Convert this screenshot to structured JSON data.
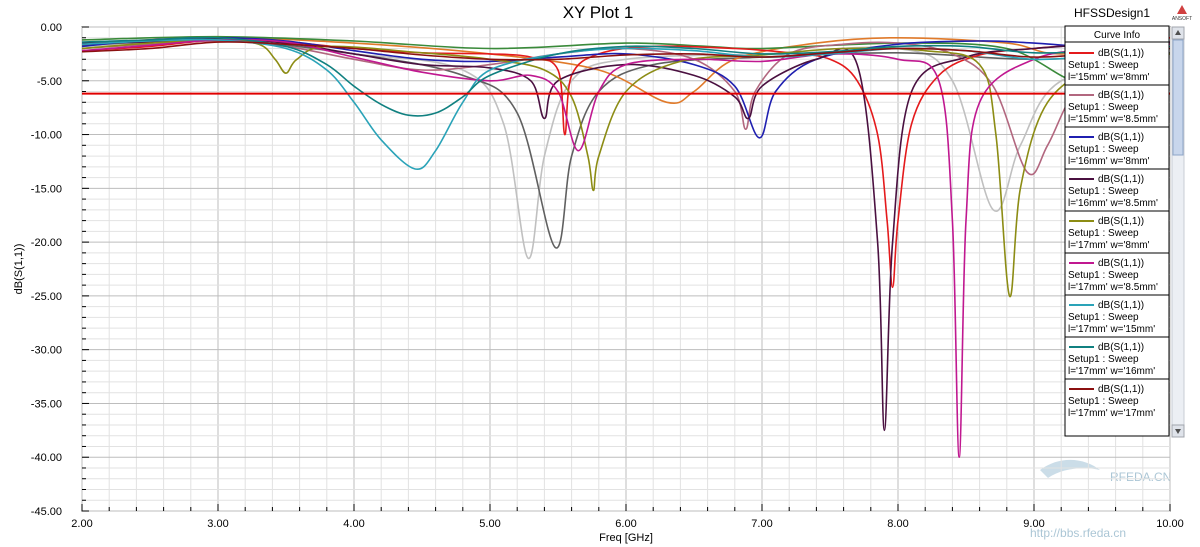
{
  "window": {
    "design_name": "HFSSDesign1",
    "brand_label": "ANSOFT",
    "watermark_site": "RFEDA.CN",
    "watermark_url": "http://bbs.rfeda.cn"
  },
  "legend": {
    "title": "Curve Info",
    "entries": [
      {
        "line1": "dB(S(1,1))",
        "line2": "Setup1 : Sweep",
        "line3": "l='15mm' w='8mm'",
        "color": "#e41a1c"
      },
      {
        "line1": "dB(S(1,1))",
        "line2": "Setup1 : Sweep",
        "line3": "l='15mm' w='8.5mm'",
        "color": "#b2677f"
      },
      {
        "line1": "dB(S(1,1))",
        "line2": "Setup1 : Sweep",
        "line3": "l='16mm' w='8mm'",
        "color": "#1f1fb0"
      },
      {
        "line1": "dB(S(1,1))",
        "line2": "Setup1 : Sweep",
        "line3": "l='16mm' w='8.5mm'",
        "color": "#4a1040"
      },
      {
        "line1": "dB(S(1,1))",
        "line2": "Setup1 : Sweep",
        "line3": "l='17mm' w='8mm'",
        "color": "#8c8c14"
      },
      {
        "line1": "dB(S(1,1))",
        "line2": "Setup1 : Sweep",
        "line3": "l='17mm' w='8.5mm'",
        "color": "#c01890"
      },
      {
        "line1": "dB(S(1,1))",
        "line2": "Setup1 : Sweep",
        "line3": "l='17mm' w='15mm'",
        "color": "#2aa3b8"
      },
      {
        "line1": "dB(S(1,1))",
        "line2": "Setup1 : Sweep",
        "line3": "l='17mm' w='16mm'",
        "color": "#108080"
      },
      {
        "line1": "dB(S(1,1))",
        "line2": "Setup1 : Sweep",
        "line3": "l='17mm' w='17mm'",
        "color": "#8b1010"
      }
    ]
  },
  "chart_data": {
    "type": "line",
    "title": "XY Plot 1",
    "xlabel": "Freq [GHz]",
    "ylabel": "dB(S(1,1))",
    "xlim": [
      2.0,
      10.0
    ],
    "ylim": [
      -45.0,
      0.0
    ],
    "x_ticks": [
      "2.00",
      "3.00",
      "4.00",
      "5.00",
      "6.00",
      "7.00",
      "8.00",
      "9.00",
      "10.00"
    ],
    "y_ticks": [
      "0.00",
      "-5.00",
      "-10.00",
      "-15.00",
      "-20.00",
      "-25.00",
      "-30.00",
      "-35.00",
      "-40.00",
      "-45.00"
    ],
    "grid": true,
    "legend_position": "right",
    "series": [
      {
        "name": "dB(S(1,1)) Setup1 : Sweep l='15mm' w='8mm'",
        "color": "#e41a1c",
        "points": [
          [
            2.0,
            -2.2
          ],
          [
            2.5,
            -1.8
          ],
          [
            3.0,
            -1.2
          ],
          [
            3.5,
            -1.4
          ],
          [
            4.0,
            -2.0
          ],
          [
            4.5,
            -2.4
          ],
          [
            5.0,
            -2.5
          ],
          [
            5.3,
            -2.8
          ],
          [
            5.5,
            -4.0
          ],
          [
            5.55,
            -10.0
          ],
          [
            5.6,
            -4.5
          ],
          [
            5.8,
            -2.5
          ],
          [
            6.2,
            -1.8
          ],
          [
            6.8,
            -2.0
          ],
          [
            7.2,
            -2.4
          ],
          [
            7.5,
            -3.0
          ],
          [
            7.7,
            -5.0
          ],
          [
            7.85,
            -10.0
          ],
          [
            7.92,
            -18.0
          ],
          [
            7.96,
            -24.2
          ],
          [
            8.0,
            -18.0
          ],
          [
            8.1,
            -9.0
          ],
          [
            8.3,
            -4.5
          ],
          [
            8.6,
            -2.6
          ],
          [
            9.0,
            -2.0
          ],
          [
            9.5,
            -1.5
          ],
          [
            10.0,
            -1.0
          ]
        ]
      },
      {
        "name": "dB(S(1,1)) Setup1 : Sweep l='15mm' w='8.5mm'",
        "color": "#b2677f",
        "points": [
          [
            2.0,
            -2.0
          ],
          [
            2.5,
            -1.6
          ],
          [
            3.0,
            -1.3
          ],
          [
            3.5,
            -1.8
          ],
          [
            4.0,
            -3.0
          ],
          [
            4.5,
            -4.0
          ],
          [
            5.0,
            -3.5
          ],
          [
            5.5,
            -2.5
          ],
          [
            6.0,
            -2.0
          ],
          [
            6.5,
            -3.0
          ],
          [
            6.8,
            -6.0
          ],
          [
            6.88,
            -9.5
          ],
          [
            6.95,
            -6.0
          ],
          [
            7.2,
            -2.5
          ],
          [
            7.6,
            -1.6
          ],
          [
            8.0,
            -1.5
          ],
          [
            8.4,
            -2.5
          ],
          [
            8.7,
            -5.5
          ],
          [
            8.95,
            -13.5
          ],
          [
            9.1,
            -11.0
          ],
          [
            9.3,
            -6.0
          ],
          [
            9.6,
            -3.0
          ],
          [
            10.0,
            -2.0
          ]
        ]
      },
      {
        "name": "dB(S(1,1)) Setup1 : Sweep l='16mm' w='8mm'",
        "color": "#1f1fb0",
        "points": [
          [
            2.0,
            -1.8
          ],
          [
            2.5,
            -1.2
          ],
          [
            3.0,
            -1.0
          ],
          [
            3.5,
            -1.3
          ],
          [
            4.0,
            -2.2
          ],
          [
            4.5,
            -3.0
          ],
          [
            5.0,
            -3.2
          ],
          [
            5.5,
            -2.8
          ],
          [
            6.0,
            -2.5
          ],
          [
            6.5,
            -3.5
          ],
          [
            6.8,
            -5.5
          ],
          [
            6.98,
            -10.3
          ],
          [
            7.1,
            -6.0
          ],
          [
            7.4,
            -3.0
          ],
          [
            8.0,
            -1.6
          ],
          [
            8.6,
            -1.3
          ],
          [
            9.0,
            -1.5
          ],
          [
            9.5,
            -2.0
          ],
          [
            10.0,
            -2.5
          ]
        ]
      },
      {
        "name": "dB(S(1,1)) Setup1 : Sweep l='16mm' w='8.5mm'",
        "color": "#4a1040",
        "points": [
          [
            2.0,
            -1.5
          ],
          [
            2.5,
            -1.4
          ],
          [
            3.0,
            -1.1
          ],
          [
            3.5,
            -1.5
          ],
          [
            4.0,
            -2.5
          ],
          [
            4.5,
            -3.5
          ],
          [
            5.0,
            -3.8
          ],
          [
            5.3,
            -5.0
          ],
          [
            5.4,
            -8.5
          ],
          [
            5.5,
            -5.0
          ],
          [
            6.0,
            -3.5
          ],
          [
            6.5,
            -4.5
          ],
          [
            6.8,
            -6.5
          ],
          [
            6.9,
            -8.5
          ],
          [
            7.0,
            -5.5
          ],
          [
            7.4,
            -3.0
          ],
          [
            7.7,
            -3.5
          ],
          [
            7.85,
            -20.0
          ],
          [
            7.9,
            -37.5
          ],
          [
            7.96,
            -20.0
          ],
          [
            8.1,
            -6.0
          ],
          [
            8.5,
            -2.8
          ],
          [
            9.0,
            -2.0
          ],
          [
            9.5,
            -1.6
          ],
          [
            10.0,
            -1.4
          ]
        ]
      },
      {
        "name": "dB(S(1,1)) Setup1 : Sweep l='17mm' w='8mm'",
        "color": "#8c8c14",
        "points": [
          [
            2.0,
            -2.0
          ],
          [
            2.5,
            -1.5
          ],
          [
            3.0,
            -1.2
          ],
          [
            3.3,
            -1.6
          ],
          [
            3.42,
            -3.0
          ],
          [
            3.5,
            -4.3
          ],
          [
            3.58,
            -3.0
          ],
          [
            3.8,
            -1.8
          ],
          [
            4.5,
            -2.4
          ],
          [
            5.0,
            -3.0
          ],
          [
            5.4,
            -4.0
          ],
          [
            5.6,
            -6.5
          ],
          [
            5.72,
            -12.0
          ],
          [
            5.76,
            -15.2
          ],
          [
            5.8,
            -12.0
          ],
          [
            6.0,
            -6.0
          ],
          [
            6.4,
            -3.2
          ],
          [
            7.0,
            -2.6
          ],
          [
            7.6,
            -2.0
          ],
          [
            8.2,
            -2.2
          ],
          [
            8.6,
            -3.5
          ],
          [
            8.72,
            -10.0
          ],
          [
            8.82,
            -25.0
          ],
          [
            8.9,
            -15.0
          ],
          [
            9.1,
            -7.0
          ],
          [
            9.5,
            -3.5
          ],
          [
            10.0,
            -2.5
          ]
        ]
      },
      {
        "name": "dB(S(1,1)) Setup1 : Sweep l='17mm' w='8.5mm'",
        "color": "#c01890",
        "points": [
          [
            2.0,
            -2.2
          ],
          [
            2.5,
            -1.7
          ],
          [
            3.0,
            -1.2
          ],
          [
            3.5,
            -1.4
          ],
          [
            4.0,
            -2.8
          ],
          [
            4.5,
            -4.2
          ],
          [
            5.0,
            -5.0
          ],
          [
            5.3,
            -4.5
          ],
          [
            5.5,
            -6.0
          ],
          [
            5.65,
            -11.5
          ],
          [
            5.8,
            -6.0
          ],
          [
            6.0,
            -3.5
          ],
          [
            6.5,
            -3.0
          ],
          [
            7.0,
            -3.2
          ],
          [
            7.5,
            -2.5
          ],
          [
            8.0,
            -3.0
          ],
          [
            8.3,
            -5.0
          ],
          [
            8.4,
            -18.0
          ],
          [
            8.45,
            -40.0
          ],
          [
            8.5,
            -18.0
          ],
          [
            8.6,
            -7.0
          ],
          [
            9.0,
            -3.0
          ],
          [
            9.5,
            -2.0
          ],
          [
            10.0,
            -1.6
          ]
        ]
      },
      {
        "name": "dB(S(1,1)) Setup1 : Sweep l='17mm' w='15mm'",
        "color": "#2aa3b8",
        "points": [
          [
            2.0,
            -1.6
          ],
          [
            2.5,
            -1.3
          ],
          [
            3.0,
            -1.2
          ],
          [
            3.5,
            -2.0
          ],
          [
            3.8,
            -4.0
          ],
          [
            4.0,
            -7.0
          ],
          [
            4.2,
            -10.5
          ],
          [
            4.45,
            -13.2
          ],
          [
            4.6,
            -11.5
          ],
          [
            4.8,
            -7.0
          ],
          [
            5.0,
            -4.0
          ],
          [
            5.5,
            -2.5
          ],
          [
            6.0,
            -2.0
          ],
          [
            6.5,
            -2.2
          ],
          [
            7.0,
            -2.8
          ],
          [
            7.5,
            -2.5
          ],
          [
            8.0,
            -2.0
          ],
          [
            8.5,
            -2.2
          ],
          [
            9.0,
            -3.0
          ],
          [
            9.5,
            -2.6
          ],
          [
            10.0,
            -2.0
          ]
        ]
      },
      {
        "name": "dB(S(1,1)) Setup1 : Sweep l='17mm' w='16mm'",
        "color": "#108080",
        "points": [
          [
            2.0,
            -1.4
          ],
          [
            2.5,
            -1.2
          ],
          [
            3.0,
            -1.0
          ],
          [
            3.5,
            -1.8
          ],
          [
            3.8,
            -3.5
          ],
          [
            4.0,
            -5.5
          ],
          [
            4.2,
            -7.2
          ],
          [
            4.4,
            -8.2
          ],
          [
            4.6,
            -8.0
          ],
          [
            4.8,
            -6.5
          ],
          [
            5.0,
            -4.5
          ],
          [
            5.5,
            -2.5
          ],
          [
            6.0,
            -1.8
          ],
          [
            6.5,
            -2.0
          ],
          [
            7.0,
            -2.5
          ],
          [
            7.5,
            -2.3
          ],
          [
            8.0,
            -1.8
          ],
          [
            8.5,
            -1.8
          ],
          [
            9.0,
            -2.4
          ],
          [
            9.5,
            -2.2
          ],
          [
            10.0,
            -1.8
          ]
        ]
      },
      {
        "name": "dB(S(1,1)) Setup1 : Sweep l='17mm' w='17mm'",
        "color": "#8b1010",
        "points": [
          [
            2.0,
            -2.3
          ],
          [
            2.5,
            -2.0
          ],
          [
            3.0,
            -1.4
          ],
          [
            3.5,
            -1.6
          ],
          [
            4.0,
            -2.0
          ],
          [
            4.5,
            -2.6
          ],
          [
            5.0,
            -3.0
          ],
          [
            5.5,
            -3.0
          ],
          [
            6.0,
            -2.6
          ],
          [
            6.5,
            -2.5
          ],
          [
            7.0,
            -2.8
          ],
          [
            7.5,
            -2.4
          ],
          [
            8.0,
            -2.0
          ],
          [
            8.5,
            -2.2
          ],
          [
            9.0,
            -2.8
          ],
          [
            9.5,
            -2.4
          ],
          [
            10.0,
            -2.0
          ]
        ]
      }
    ],
    "unlisted_curves": [
      {
        "color": "#c0c0c0",
        "points": [
          [
            2.0,
            -1.8
          ],
          [
            3.0,
            -1.3
          ],
          [
            4.0,
            -2.5
          ],
          [
            4.8,
            -4.0
          ],
          [
            5.1,
            -9.0
          ],
          [
            5.28,
            -21.5
          ],
          [
            5.4,
            -12.0
          ],
          [
            5.6,
            -5.0
          ],
          [
            6.0,
            -3.0
          ],
          [
            7.0,
            -2.5
          ],
          [
            8.0,
            -2.0
          ],
          [
            8.4,
            -5.0
          ],
          [
            8.7,
            -17.0
          ],
          [
            8.9,
            -11.0
          ],
          [
            9.2,
            -5.0
          ],
          [
            10.0,
            -2.5
          ]
        ]
      },
      {
        "color": "#606060",
        "points": [
          [
            2.0,
            -1.7
          ],
          [
            3.0,
            -1.2
          ],
          [
            4.0,
            -2.5
          ],
          [
            4.8,
            -4.5
          ],
          [
            5.2,
            -8.0
          ],
          [
            5.48,
            -20.5
          ],
          [
            5.6,
            -12.0
          ],
          [
            5.8,
            -6.0
          ],
          [
            6.2,
            -3.5
          ],
          [
            7.0,
            -2.8
          ],
          [
            8.0,
            -2.4
          ],
          [
            9.0,
            -3.0
          ],
          [
            10.0,
            -2.4
          ]
        ]
      },
      {
        "color": "#e07a2a",
        "points": [
          [
            2.0,
            -1.5
          ],
          [
            3.0,
            -1.0
          ],
          [
            4.0,
            -1.5
          ],
          [
            5.0,
            -2.5
          ],
          [
            5.8,
            -4.0
          ],
          [
            6.3,
            -7.0
          ],
          [
            6.5,
            -6.0
          ],
          [
            6.8,
            -3.0
          ],
          [
            7.4,
            -1.5
          ],
          [
            8.0,
            -1.0
          ],
          [
            8.8,
            -1.5
          ],
          [
            9.2,
            -2.5
          ],
          [
            10.0,
            -1.5
          ]
        ]
      },
      {
        "color": "#3a8a3a",
        "points": [
          [
            2.0,
            -1.2
          ],
          [
            3.0,
            -0.9
          ],
          [
            4.0,
            -1.3
          ],
          [
            5.0,
            -2.0
          ],
          [
            6.0,
            -1.5
          ],
          [
            6.6,
            -1.8
          ],
          [
            7.0,
            -2.0
          ],
          [
            8.0,
            -1.5
          ],
          [
            8.8,
            -2.0
          ],
          [
            9.3,
            -5.0
          ],
          [
            9.5,
            -3.0
          ],
          [
            10.0,
            -1.5
          ]
        ]
      }
    ],
    "reference_line": {
      "y": -6.2,
      "color": "#e00000"
    }
  }
}
